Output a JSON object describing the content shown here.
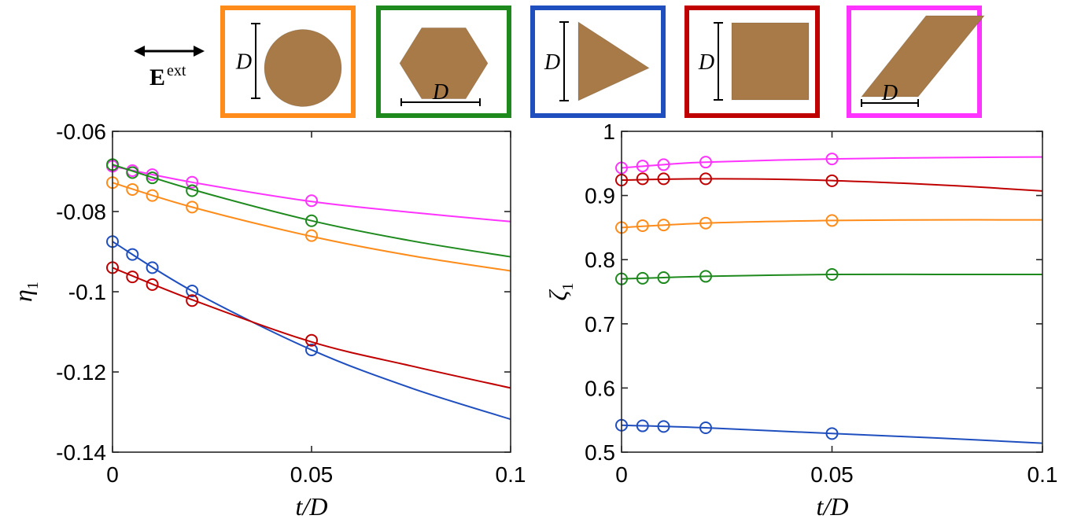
{
  "header": {
    "field_symbol": "E",
    "field_superscript": "ext",
    "dimension_label": "D",
    "shapes": [
      {
        "shape": "circle",
        "frame_color": "#ff8c1a"
      },
      {
        "shape": "hexagon",
        "frame_color": "#1e8a1e"
      },
      {
        "shape": "triangle",
        "frame_color": "#1f4fbf"
      },
      {
        "shape": "square",
        "frame_color": "#c00000"
      },
      {
        "shape": "parallelogram",
        "frame_color": "#ff33ff"
      }
    ],
    "fill_color": "#a77a47"
  },
  "chart_data": [
    {
      "type": "line",
      "xlabel": "t/D",
      "ylabel": "η",
      "ylabel_sub": "1",
      "xlim": [
        0,
        0.1
      ],
      "ylim": [
        -0.14,
        -0.06
      ],
      "xticks": [
        0,
        0.05,
        0.1
      ],
      "xtick_labels": [
        "0",
        "0.05",
        "0.1"
      ],
      "yticks": [
        -0.14,
        -0.12,
        -0.1,
        -0.08,
        -0.06
      ],
      "ytick_labels": [
        "-0.14",
        "-0.12",
        "-0.1",
        "-0.08",
        "-0.06"
      ],
      "grid": false,
      "series": [
        {
          "color": "#ff33ff",
          "markers": {
            "x": [
              0,
              0.005,
              0.01,
              0.02,
              0.05
            ],
            "y": [
              -0.0687,
              -0.0698,
              -0.0708,
              -0.0727,
              -0.0773
            ]
          },
          "curve": {
            "x": [
              0,
              0.02,
              0.05,
              0.075,
              0.1
            ],
            "y": [
              -0.0687,
              -0.0727,
              -0.0775,
              -0.0802,
              -0.0825
            ]
          }
        },
        {
          "color": "#1e8a1e",
          "markers": {
            "x": [
              0,
              0.005,
              0.01,
              0.02,
              0.05
            ],
            "y": [
              -0.0683,
              -0.0703,
              -0.0716,
              -0.0748,
              -0.0823
            ]
          },
          "curve": {
            "x": [
              0,
              0.02,
              0.05,
              0.075,
              0.1
            ],
            "y": [
              -0.0683,
              -0.0745,
              -0.0823,
              -0.0873,
              -0.0913
            ]
          }
        },
        {
          "color": "#ff8c1a",
          "markers": {
            "x": [
              0,
              0.005,
              0.01,
              0.02,
              0.05
            ],
            "y": [
              -0.0728,
              -0.0745,
              -0.076,
              -0.0789,
              -0.086
            ]
          },
          "curve": {
            "x": [
              0,
              0.02,
              0.05,
              0.075,
              0.1
            ],
            "y": [
              -0.0728,
              -0.0789,
              -0.0862,
              -0.091,
              -0.0948
            ]
          }
        },
        {
          "color": "#1f4fbf",
          "markers": {
            "x": [
              0,
              0.005,
              0.01,
              0.02,
              0.05
            ],
            "y": [
              -0.0875,
              -0.0907,
              -0.094,
              -0.0998,
              -0.1145
            ]
          },
          "curve": {
            "x": [
              0,
              0.02,
              0.05,
              0.075,
              0.1
            ],
            "y": [
              -0.0875,
              -0.0998,
              -0.1145,
              -0.124,
              -0.1318
            ]
          }
        },
        {
          "color": "#c00000",
          "markers": {
            "x": [
              0,
              0.005,
              0.01,
              0.02,
              0.05
            ],
            "y": [
              -0.094,
              -0.0963,
              -0.0982,
              -0.1022,
              -0.1121
            ]
          },
          "curve": {
            "x": [
              0,
              0.02,
              0.05,
              0.075,
              0.1
            ],
            "y": [
              -0.094,
              -0.102,
              -0.1125,
              -0.1185,
              -0.124
            ]
          }
        }
      ]
    },
    {
      "type": "line",
      "xlabel": "t/D",
      "ylabel": "ζ",
      "ylabel_sub": "1",
      "xlim": [
        0,
        0.1
      ],
      "ylim": [
        0.5,
        1.0
      ],
      "xticks": [
        0,
        0.05,
        0.1
      ],
      "xtick_labels": [
        "0",
        "0.05",
        "0.1"
      ],
      "yticks": [
        0.5,
        0.6,
        0.7,
        0.8,
        0.9,
        1.0
      ],
      "ytick_labels": [
        "0.5",
        "0.6",
        "0.7",
        "0.8",
        "0.9",
        "1"
      ],
      "grid": false,
      "series": [
        {
          "color": "#ff33ff",
          "markers": {
            "x": [
              0,
              0.005,
              0.01,
              0.02,
              0.05
            ],
            "y": [
              0.943,
              0.946,
              0.948,
              0.952,
              0.957
            ]
          },
          "curve": {
            "x": [
              0,
              0.01,
              0.02,
              0.05,
              0.075,
              0.1
            ],
            "y": [
              0.943,
              0.948,
              0.952,
              0.957,
              0.959,
              0.96
            ]
          }
        },
        {
          "color": "#c00000",
          "markers": {
            "x": [
              0,
              0.005,
              0.01,
              0.02,
              0.05
            ],
            "y": [
              0.924,
              0.926,
              0.926,
              0.926,
              0.923
            ]
          },
          "curve": {
            "x": [
              0,
              0.02,
              0.04,
              0.06,
              0.08,
              0.1
            ],
            "y": [
              0.924,
              0.926,
              0.925,
              0.921,
              0.915,
              0.907
            ]
          }
        },
        {
          "color": "#ff8c1a",
          "markers": {
            "x": [
              0,
              0.005,
              0.01,
              0.02,
              0.05
            ],
            "y": [
              0.85,
              0.853,
              0.854,
              0.857,
              0.861
            ]
          },
          "curve": {
            "x": [
              0,
              0.02,
              0.05,
              0.075,
              0.1
            ],
            "y": [
              0.85,
              0.857,
              0.861,
              0.862,
              0.862
            ]
          }
        },
        {
          "color": "#1e8a1e",
          "markers": {
            "x": [
              0,
              0.005,
              0.01,
              0.02,
              0.05
            ],
            "y": [
              0.77,
              0.771,
              0.772,
              0.774,
              0.777
            ]
          },
          "curve": {
            "x": [
              0,
              0.02,
              0.05,
              0.075,
              0.1
            ],
            "y": [
              0.77,
              0.774,
              0.777,
              0.777,
              0.777
            ]
          }
        },
        {
          "color": "#1f4fbf",
          "markers": {
            "x": [
              0,
              0.005,
              0.01,
              0.02,
              0.05
            ],
            "y": [
              0.542,
              0.541,
              0.54,
              0.538,
              0.529
            ]
          },
          "curve": {
            "x": [
              0,
              0.02,
              0.05,
              0.075,
              0.1
            ],
            "y": [
              0.542,
              0.538,
              0.529,
              0.522,
              0.514
            ]
          }
        }
      ]
    }
  ]
}
